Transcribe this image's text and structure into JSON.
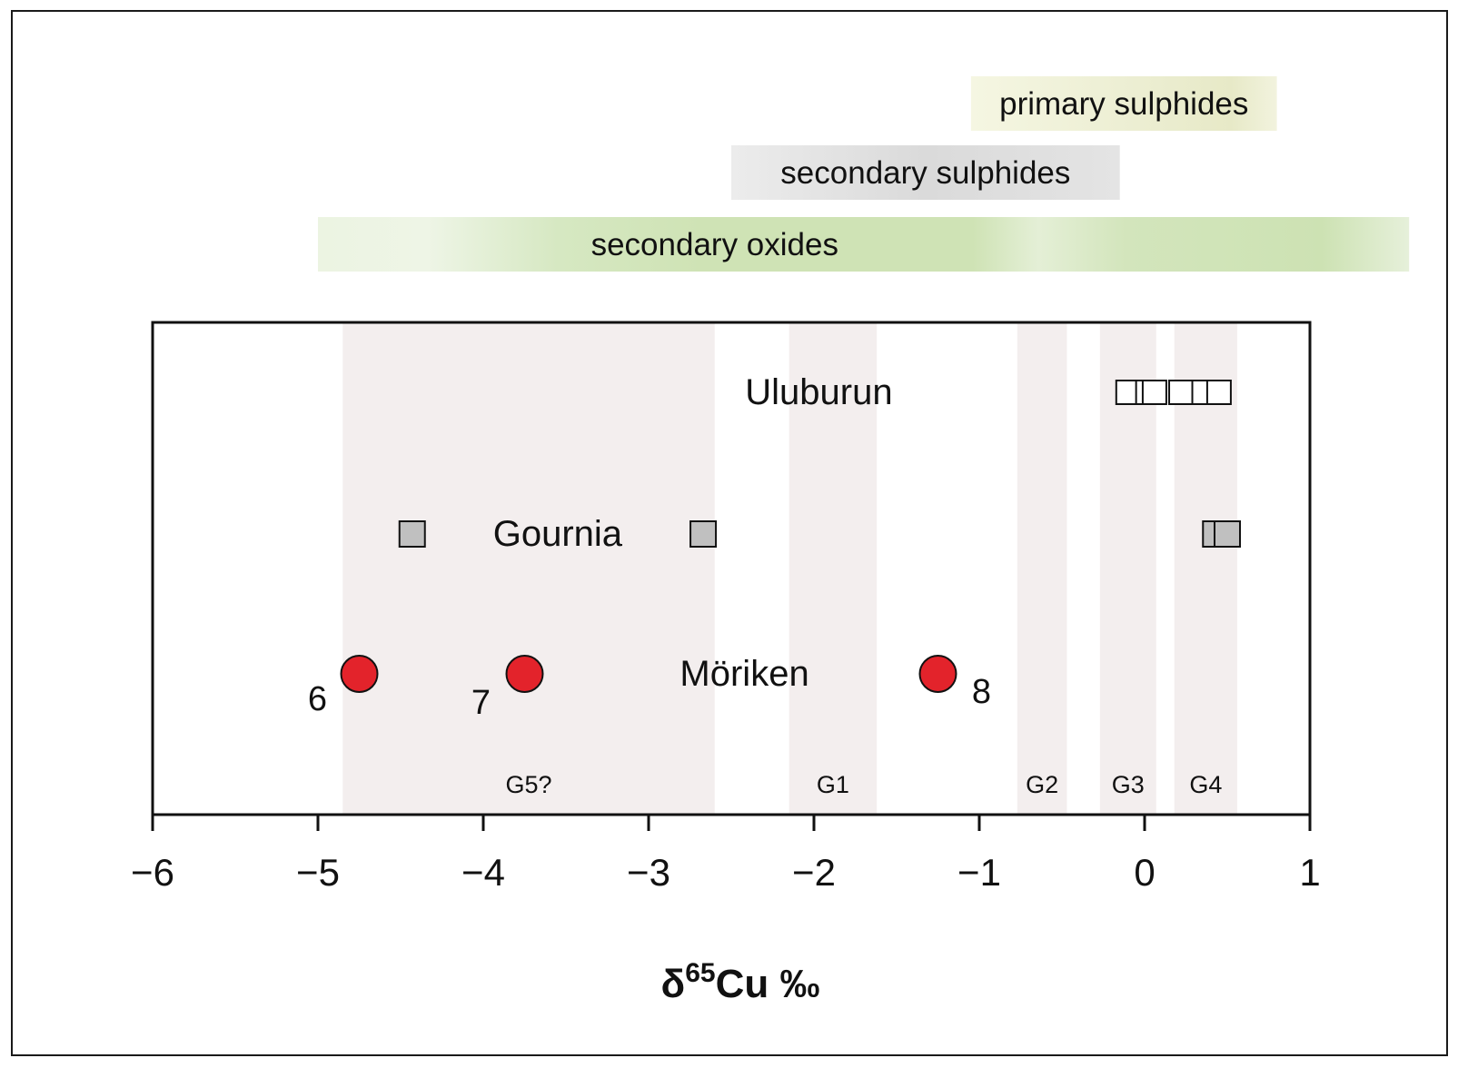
{
  "chart_data": {
    "type": "scatter",
    "xlabel_main": "δ",
    "xlabel_sup": "65",
    "xlabel_rest": "Cu ‰",
    "xlim": [
      -6,
      1
    ],
    "xticks": [
      {
        "value": -6,
        "label": "−6"
      },
      {
        "value": -5,
        "label": "−5"
      },
      {
        "value": -4,
        "label": "−4"
      },
      {
        "value": -3,
        "label": "−3"
      },
      {
        "value": -2,
        "label": "−2"
      },
      {
        "value": -1,
        "label": "−1"
      },
      {
        "value": 0,
        "label": "0"
      },
      {
        "value": 1,
        "label": "1"
      }
    ],
    "ore_ranges": [
      {
        "label": "primary sulphides",
        "from": -1.05,
        "to": 0.8,
        "color": "#e9eccb"
      },
      {
        "label": "secondary sulphides",
        "from": -2.5,
        "to": -0.15,
        "color": "#dcdcdc"
      },
      {
        "label": "secondary oxides",
        "from": -5.0,
        "to": 1.6,
        "color": "#cfe3b5"
      }
    ],
    "groups": [
      {
        "label": "G5?",
        "from": -4.85,
        "to": -2.6
      },
      {
        "label": "G1",
        "from": -2.15,
        "to": -1.62
      },
      {
        "label": "G2",
        "from": -0.77,
        "to": -0.47
      },
      {
        "label": "G3",
        "from": -0.27,
        "to": 0.07
      },
      {
        "label": "G4",
        "from": 0.18,
        "to": 0.56
      }
    ],
    "series": [
      {
        "name": "Uluburun",
        "marker": "open-square",
        "row": 1,
        "x": [
          -0.1,
          0.02,
          0.06,
          0.22,
          0.36,
          0.45
        ]
      },
      {
        "name": "Gournia",
        "marker": "grey-square",
        "row": 2,
        "x": [
          -4.43,
          -2.67,
          0.43,
          0.5
        ]
      },
      {
        "name": "Möriken",
        "marker": "red-circle",
        "row": 3,
        "x": [
          -4.75,
          -3.75,
          -1.25
        ],
        "point_labels": [
          "6",
          "7",
          "8"
        ]
      }
    ]
  },
  "colors": {
    "group_band": "#f3eeee",
    "red_point": "#e3232b",
    "grey_point": "#c0c0c0",
    "open_point": "#ffffff"
  }
}
